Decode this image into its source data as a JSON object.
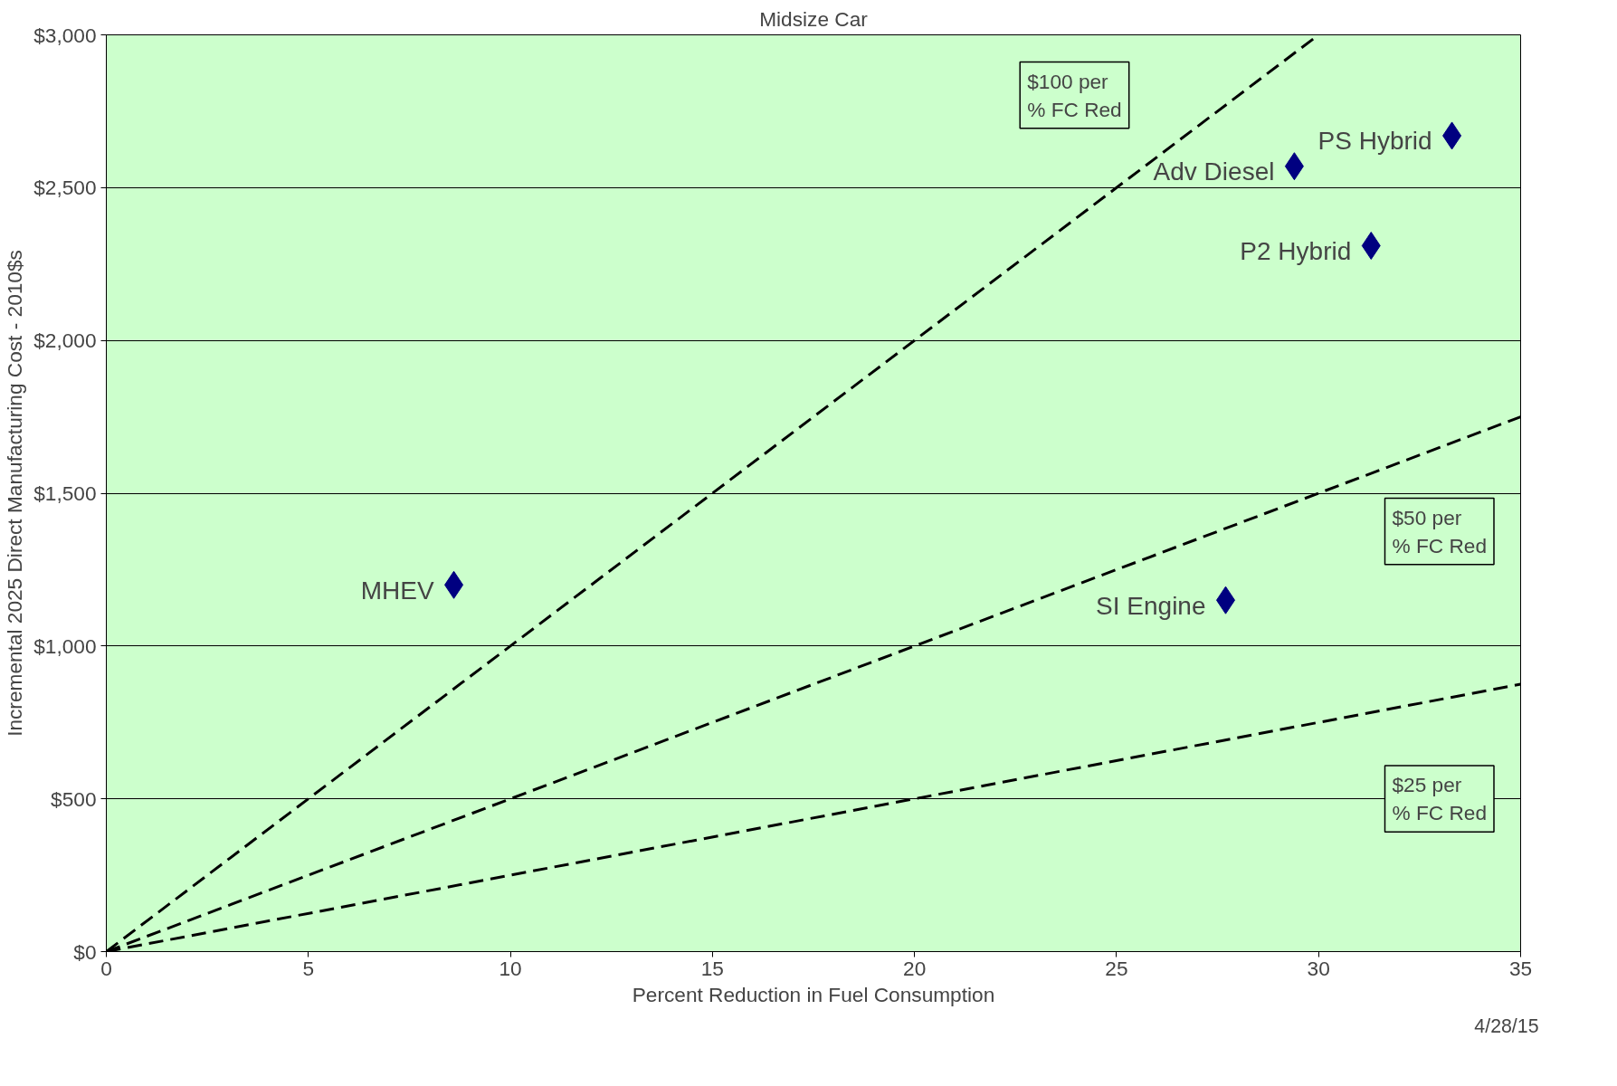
{
  "chart_data": {
    "type": "scatter",
    "title": "Midsize Car",
    "xlabel": "Percent Reduction in Fuel Consumption",
    "ylabel": "Incremental 2025 Direct Manufacturing Cost - 2010$s",
    "xlim": [
      0,
      35
    ],
    "ylim": [
      0,
      3000
    ],
    "xticks": [
      0,
      5,
      10,
      15,
      20,
      25,
      30,
      35
    ],
    "yticks": [
      {
        "value": 0,
        "label": "$0"
      },
      {
        "value": 500,
        "label": "$500"
      },
      {
        "value": 1000,
        "label": "$1,000"
      },
      {
        "value": 1500,
        "label": "$1,500"
      },
      {
        "value": 2000,
        "label": "$2,000"
      },
      {
        "value": 2500,
        "label": "$2,500"
      },
      {
        "value": 3000,
        "label": "$3,000"
      }
    ],
    "grid": "y",
    "series": [
      {
        "color": "#000080",
        "marker": "diamond",
        "x": [
          8.6,
          27.7,
          33.3,
          29.4,
          31.3
        ],
        "values": [
          1200,
          1150,
          2670,
          2570,
          2310
        ]
      },
      {
        "type": "line",
        "name": "$100 per\n% FC Red",
        "color": "#000000",
        "line_style": "dashed",
        "x": [
          0,
          30
        ],
        "values": [
          0,
          3000
        ]
      },
      {
        "type": "line",
        "name": "$50 per\n% FC Red",
        "color": "#000000",
        "line_style": "dashed",
        "x": [
          0,
          35
        ],
        "values": [
          0,
          1750
        ]
      },
      {
        "type": "line",
        "name": "$25 per\n% FC Red",
        "color": "#000000",
        "line_style": "dashed",
        "x": [
          0,
          35
        ],
        "values": [
          0,
          875
        ]
      }
    ],
    "annotations": [
      {
        "text": "MHEV",
        "x": 8.6,
        "y": 1200
      },
      {
        "text": "SI Engine",
        "x": 27.7,
        "y": 1150
      },
      {
        "text": "PS Hybrid",
        "x": 33.3,
        "y": 2670
      },
      {
        "text": "Adv Diesel",
        "x": 29.4,
        "y": 2570
      },
      {
        "text": "P2 Hybrid",
        "x": 31.3,
        "y": 2310
      },
      "4/28/15"
    ]
  }
}
